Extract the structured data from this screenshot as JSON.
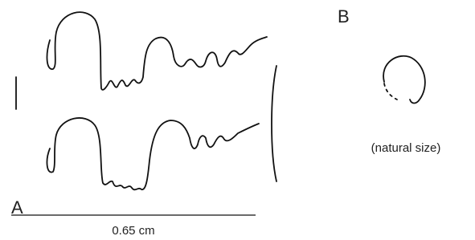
{
  "panels": [
    {
      "label": "A",
      "scale_label": "0.65 cm"
    },
    {
      "label": "B",
      "caption": "(natural size)"
    }
  ]
}
